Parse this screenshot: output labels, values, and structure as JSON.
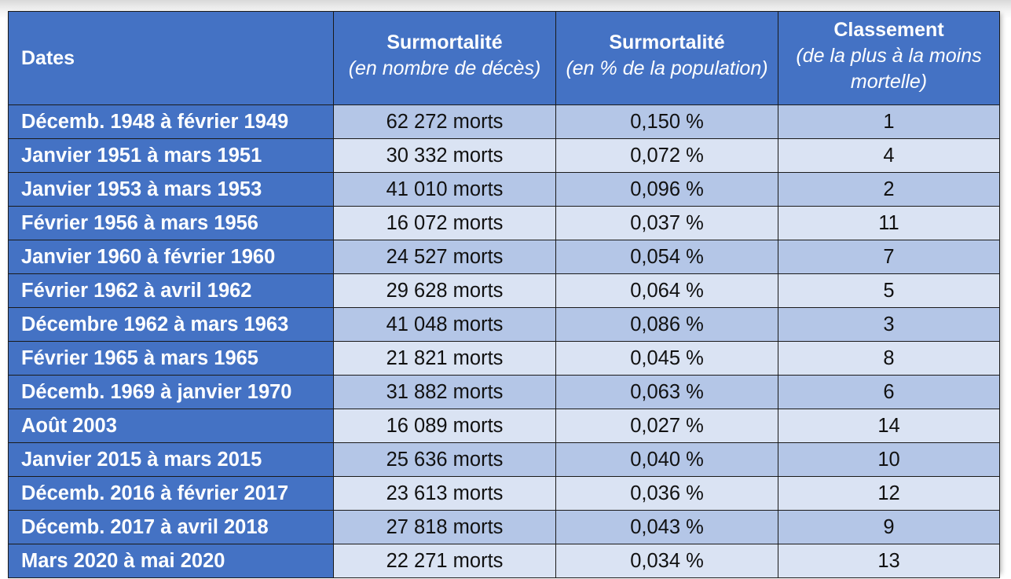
{
  "table": {
    "headers": {
      "dates": "Dates",
      "deaths_title": "Surmortalité",
      "deaths_sub": "(en nombre de décès)",
      "pct_title": "Surmortalité",
      "pct_sub": "(en % de la population)",
      "rank_title": "Classement",
      "rank_sub": "(de la plus à la moins mortelle)"
    },
    "rows": [
      {
        "period": "Décemb. 1948 à février 1949",
        "deaths": "62 272 morts",
        "pct": "0,150 %",
        "rank": "1"
      },
      {
        "period": "Janvier 1951 à mars 1951",
        "deaths": "30 332 morts",
        "pct": "0,072 %",
        "rank": "4"
      },
      {
        "period": "Janvier 1953 à mars 1953",
        "deaths": "41 010 morts",
        "pct": "0,096 %",
        "rank": "2"
      },
      {
        "period": "Février 1956 à mars 1956",
        "deaths": "16 072 morts",
        "pct": "0,037 %",
        "rank": "11"
      },
      {
        "period": "Janvier 1960 à février 1960",
        "deaths": "24 527 morts",
        "pct": "0,054 %",
        "rank": "7"
      },
      {
        "period": "Février 1962 à avril 1962",
        "deaths": "29 628 morts",
        "pct": "0,064 %",
        "rank": "5"
      },
      {
        "period": "Décembre 1962 à mars 1963",
        "deaths": "41 048 morts",
        "pct": "0,086 %",
        "rank": "3"
      },
      {
        "period": "Février 1965 à mars 1965",
        "deaths": "21 821 morts",
        "pct": "0,045 %",
        "rank": "8"
      },
      {
        "period": "Décemb. 1969 à janvier 1970",
        "deaths": "31 882 morts",
        "pct": "0,063 %",
        "rank": "6"
      },
      {
        "period": "Août 2003",
        "deaths": "16 089 morts",
        "pct": "0,027 %",
        "rank": "14"
      },
      {
        "period": "Janvier 2015 à mars 2015",
        "deaths": "25 636 morts",
        "pct": "0,040 %",
        "rank": "10"
      },
      {
        "period": "Décemb. 2016 à février 2017",
        "deaths": "23 613 morts",
        "pct": "0,036 %",
        "rank": "12"
      },
      {
        "period": "Décemb. 2017 à avril 2018",
        "deaths": "27 818 morts",
        "pct": "0,043 %",
        "rank": "9"
      },
      {
        "period": "Mars 2020 à mai 2020",
        "deaths": "22 271 morts",
        "pct": "0,034 %",
        "rank": "13"
      }
    ]
  },
  "chart_data": {
    "type": "table",
    "columns": [
      "Dates",
      "Surmortalité (en nombre de décès)",
      "Surmortalité (en % de la population)",
      "Classement (de la plus à la moins mortelle)"
    ],
    "rows": [
      [
        "Décemb. 1948 à février 1949",
        62272,
        0.15,
        1
      ],
      [
        "Janvier 1951 à mars 1951",
        30332,
        0.072,
        4
      ],
      [
        "Janvier 1953 à mars 1953",
        41010,
        0.096,
        2
      ],
      [
        "Février 1956 à mars 1956",
        16072,
        0.037,
        11
      ],
      [
        "Janvier 1960 à février 1960",
        24527,
        0.054,
        7
      ],
      [
        "Février 1962 à avril 1962",
        29628,
        0.064,
        5
      ],
      [
        "Décembre 1962 à mars 1963",
        41048,
        0.086,
        3
      ],
      [
        "Février 1965 à mars 1965",
        21821,
        0.045,
        8
      ],
      [
        "Décemb. 1969 à janvier 1970",
        31882,
        0.063,
        6
      ],
      [
        "Août 2003",
        16089,
        0.027,
        14
      ],
      [
        "Janvier 2015 à mars 2015",
        25636,
        0.04,
        10
      ],
      [
        "Décemb. 2016 à février 2017",
        23613,
        0.036,
        12
      ],
      [
        "Décemb. 2017 à avril 2018",
        27818,
        0.043,
        9
      ],
      [
        "Mars 2020 à mai 2020",
        22271,
        0.034,
        13
      ]
    ]
  },
  "colors": {
    "header_blue": "#4472c4",
    "row_dark": "#b4c6e7",
    "row_light": "#dae3f3"
  }
}
